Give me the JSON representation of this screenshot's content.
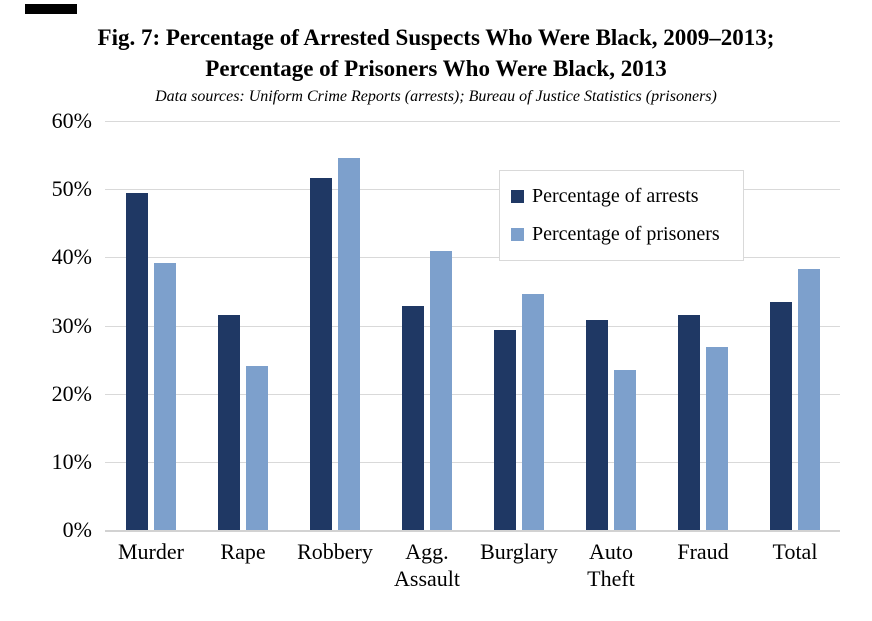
{
  "figure": {
    "title_line1": "Fig. 7: Percentage of Arrested Suspects Who Were Black, 2009–2013;",
    "title_line2": "Percentage of Prisoners Who Were Black, 2013",
    "subtitle": "Data sources: Uniform Crime Reports (arrests); Bureau of Justice Statistics (prisoners)"
  },
  "chart_data": {
    "type": "bar",
    "title": "Fig. 7: Percentage of Arrested Suspects Who Were Black, 2009–2013; Percentage of Prisoners Who Were Black, 2013",
    "subtitle": "Data sources: Uniform Crime Reports (arrests); Bureau of Justice Statistics (prisoners)",
    "categories": [
      "Murder",
      "Rape",
      "Robbery",
      "Agg.\nAssault",
      "Burglary",
      "Auto\nTheft",
      "Fraud",
      "Total"
    ],
    "series": [
      {
        "name": "Percentage of arrests",
        "color": "#1f3864",
        "values": [
          49.4,
          31.6,
          51.6,
          32.8,
          29.3,
          30.8,
          31.5,
          33.5
        ]
      },
      {
        "name": "Percentage of prisoners",
        "color": "#7da0cc",
        "values": [
          39.1,
          24.0,
          54.5,
          40.9,
          34.6,
          23.5,
          26.8,
          38.3
        ]
      }
    ],
    "xlabel": "",
    "ylabel": "",
    "ylim": [
      0,
      60
    ],
    "y_tick_labels": [
      "0%",
      "10%",
      "20%",
      "30%",
      "40%",
      "50%",
      "60%"
    ],
    "grid": true,
    "gridline_color": "#d9d9d9",
    "legend_position": "upper-right inset box",
    "background": "#ffffff",
    "text_color": "#000000"
  }
}
